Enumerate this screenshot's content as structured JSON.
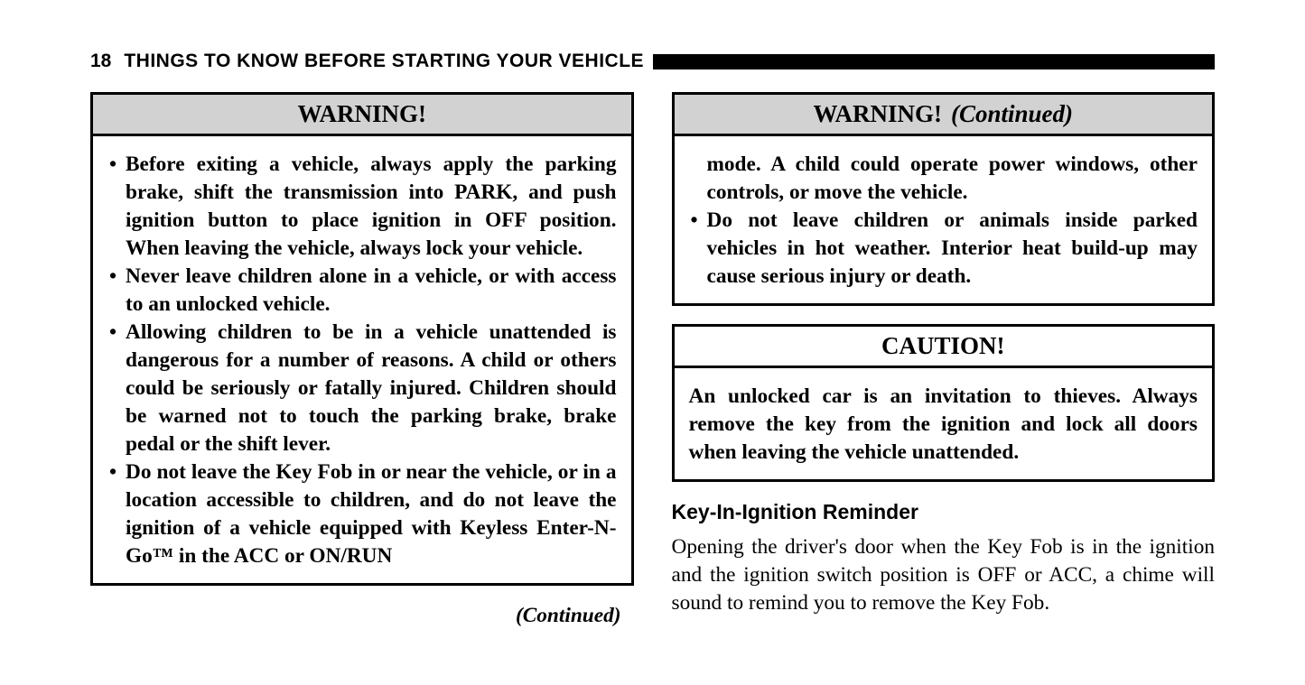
{
  "page_number": "18",
  "section_title": "THINGS TO KNOW BEFORE STARTING YOUR VEHICLE",
  "left": {
    "warning": {
      "title": "WARNING!",
      "items": [
        "Before exiting a vehicle, always apply the parking brake, shift the transmission into PARK, and push ignition button to place ignition in OFF position. When leaving the vehicle, always lock your vehicle.",
        "Never leave children alone in a vehicle, or with access to an unlocked vehicle.",
        "Allowing children to be in a vehicle unattended is dangerous for a number of reasons. A child or others could be seriously or fatally injured. Children should be warned not to touch the parking brake, brake pedal or the shift lever.",
        "Do not leave the Key Fob in or near the vehicle, or in a location accessible to children, and do not leave the ignition of a vehicle equipped with Keyless Enter-N-Go™ in the ACC or ON/RUN"
      ]
    },
    "continued_label": "(Continued)"
  },
  "right": {
    "warning_cont": {
      "title": "WARNING!",
      "cont": "(Continued)",
      "continuation_text": "mode. A child could operate power windows, other controls, or move the vehicle.",
      "items": [
        "Do not leave children or animals inside parked vehicles in hot weather. Interior heat build-up may cause serious injury or death."
      ]
    },
    "caution": {
      "title": "CAUTION!",
      "body": "An unlocked car is an invitation to thieves. Always remove the key from the ignition and lock all doors when leaving the vehicle unattended."
    },
    "subsection": {
      "heading": "Key-In-Ignition Reminder",
      "body": "Opening the driver's door when the Key Fob is in the ignition and the ignition switch position is OFF or ACC, a chime will sound to remind you to remove the Key Fob."
    }
  }
}
